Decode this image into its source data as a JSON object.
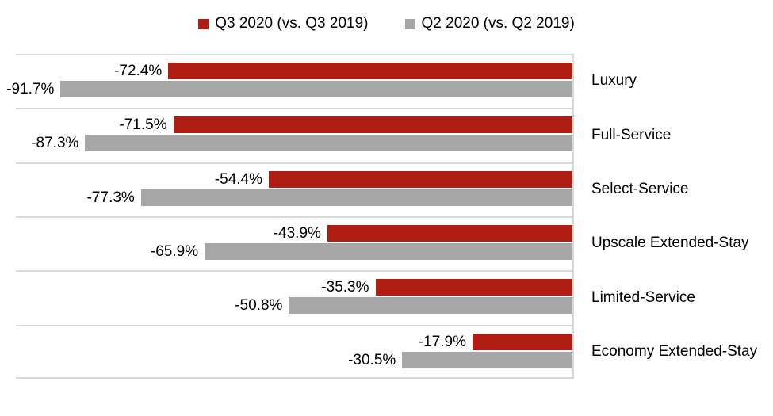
{
  "chart_data": {
    "type": "bar",
    "orientation": "horizontal",
    "title": "",
    "categories": [
      "Luxury",
      "Full-Service",
      "Select-Service",
      "Upscale Extended-Stay",
      "Limited-Service",
      "Economy Extended-Stay"
    ],
    "series": [
      {
        "name": "Q3 2020 (vs. Q3 2019)",
        "color": "#B01E13",
        "values": [
          -72.4,
          -71.5,
          -54.4,
          -43.9,
          -35.3,
          -17.9
        ],
        "data_labels": [
          "-72.4%",
          "-71.5%",
          "-54.4%",
          "-43.9%",
          "-35.3%",
          "-17.9%"
        ]
      },
      {
        "name": "Q2 2020 (vs. Q2 2019)",
        "color": "#A6A6A6",
        "values": [
          -91.7,
          -87.3,
          -77.3,
          -65.9,
          -50.8,
          -30.5
        ],
        "data_labels": [
          "-91.7%",
          "-87.3%",
          "-77.3%",
          "-65.9%",
          "-50.8%",
          "-30.5%"
        ]
      }
    ],
    "xlim": [
      -100,
      0
    ],
    "zero_axis": "right edge, bars extend left",
    "gridlines": {
      "color": "#D9D9D9",
      "category_separators": true,
      "vertical_gridlines": false
    },
    "legend_position": "top-center",
    "data_label_position": "outside end (left of bar)",
    "text_color": "#000000"
  }
}
